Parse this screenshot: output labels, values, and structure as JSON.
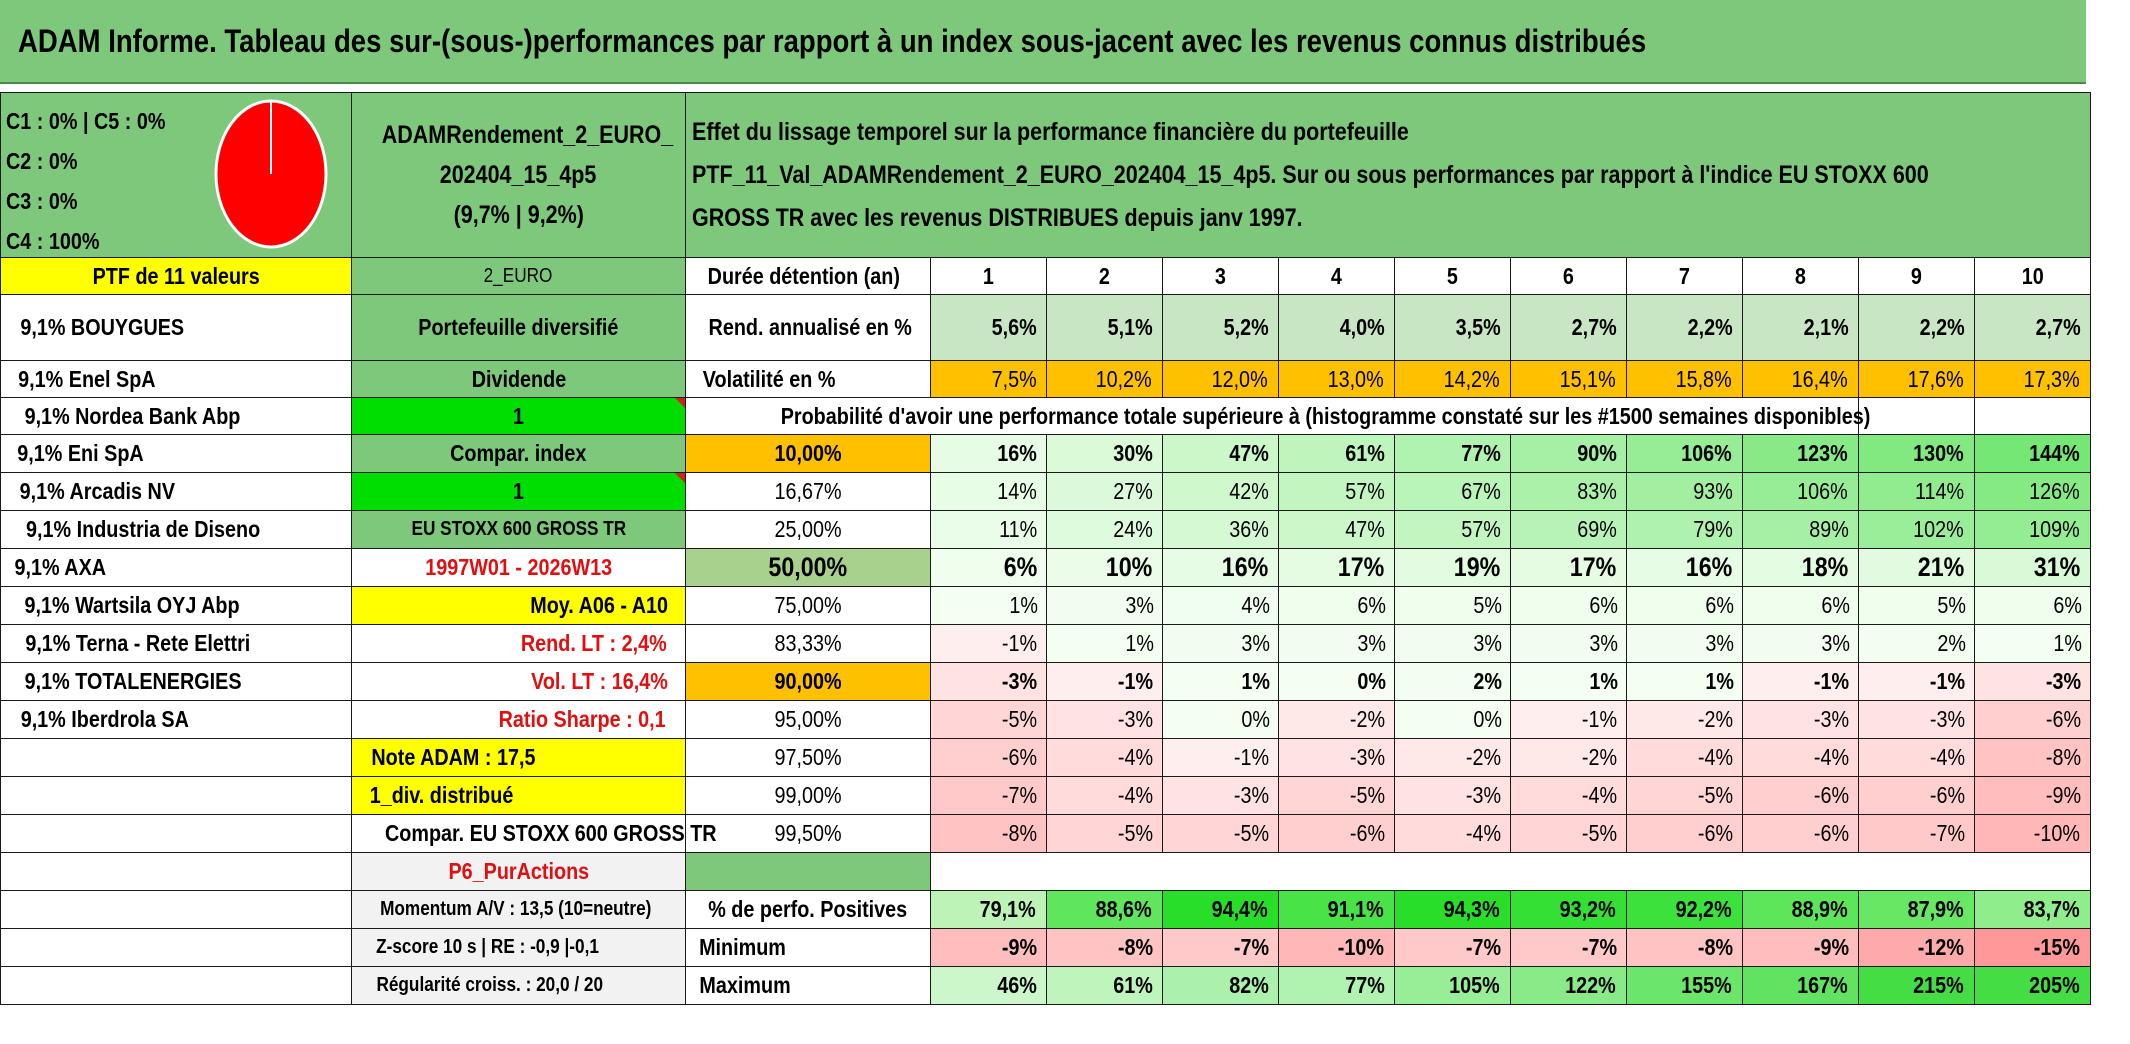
{
  "title": "ADAM Informe. Tableau des sur-(sous-)performances par rapport à un index sous-jacent avec les revenus connus distribués",
  "info_lines": [
    "C1 : 0% | C5 : 0%",
    "C2 : 0%",
    "C3 : 0%",
    "C4 : 100%"
  ],
  "pie": {
    "fill_color": "#ff0000",
    "value": "C4 : 100%"
  },
  "ptf_name": [
    "ADAMRendement_2_EURO_",
    "202404_15_4p5",
    "(9,7% | 9,2%)"
  ],
  "effect_text": [
    "Effet du lissage temporel sur la performance financière du portefeuille",
    "PTF_11_Val_ADAMRendement_2_EURO_202404_15_4p5. Sur ou sous performances par rapport à l'indice EU STOXX 600",
    "GROSS TR avec les revenus DISTRIBUES depuis janv 1997."
  ],
  "ptf_header": "PTF de 11 valeurs",
  "currency": "2_EURO",
  "duration_label": "Durée détention (an)",
  "years": [
    "1",
    "2",
    "3",
    "4",
    "5",
    "6",
    "7",
    "8",
    "9",
    "10"
  ],
  "holdings": [
    "9,1% BOUYGUES",
    "9,1% Enel SpA",
    "9,1% Nordea Bank Abp",
    "9,1% Eni SpA",
    "9,1% Arcadis NV",
    "9,1% Industria de Diseno",
    "9,1% AXA",
    "9,1% Wartsila OYJ Abp",
    "9,1% Terna - Rete Elettri",
    "9,1% TOTALENERGIES",
    "9,1% Iberdrola SA"
  ],
  "middle": {
    "diversified": "Portefeuille diversifié",
    "dividend": "Dividende",
    "one_a": "1",
    "compar_index": "Compar. index",
    "one_b": "1",
    "index_name": "EU STOXX 600 GROSS TR",
    "period": "1997W01 - 2026W13",
    "avg": "Moy. A06 - A10",
    "rend_lt": "Rend. LT : 2,4%",
    "vol_lt": "Vol. LT : 16,4%",
    "sharpe": "Ratio Sharpe : 0,1",
    "note": "Note ADAM : 17,5",
    "div": "1_div. distribué",
    "compar": "Compar. EU STOXX 600 GROSS TR",
    "p6": "P6_PurActions",
    "momentum": "Momentum A/V : 13,5 (10=neutre)",
    "zscore": "Z-score 10 s | RE : -0,9 |-0,1",
    "regularite": "Régularité croiss. : 20,0 / 20"
  },
  "rend": {
    "label": "Rend. annualisé en %",
    "values": [
      "5,6%",
      "5,1%",
      "5,2%",
      "4,0%",
      "3,5%",
      "2,7%",
      "2,2%",
      "2,1%",
      "2,2%",
      "2,7%"
    ]
  },
  "vol": {
    "label": "Volatilité en %",
    "values": [
      "7,5%",
      "10,2%",
      "12,0%",
      "13,0%",
      "14,2%",
      "15,1%",
      "15,8%",
      "16,4%",
      "17,6%",
      "17,3%"
    ]
  },
  "prob_title": "Probabilité d'avoir une performance totale supérieure à (histogramme constaté sur les #1500 semaines disponibles)",
  "prob_rows": [
    {
      "p": "10,00%",
      "values": [
        "16%",
        "30%",
        "47%",
        "61%",
        "77%",
        "90%",
        "106%",
        "123%",
        "130%",
        "144%"
      ]
    },
    {
      "p": "16,67%",
      "values": [
        "14%",
        "27%",
        "42%",
        "57%",
        "67%",
        "83%",
        "93%",
        "106%",
        "114%",
        "126%"
      ]
    },
    {
      "p": "25,00%",
      "values": [
        "11%",
        "24%",
        "36%",
        "47%",
        "57%",
        "69%",
        "79%",
        "89%",
        "102%",
        "109%"
      ]
    },
    {
      "p": "50,00%",
      "values": [
        "6%",
        "10%",
        "16%",
        "17%",
        "19%",
        "17%",
        "16%",
        "18%",
        "21%",
        "31%"
      ]
    },
    {
      "p": "75,00%",
      "values": [
        "1%",
        "3%",
        "4%",
        "6%",
        "5%",
        "6%",
        "6%",
        "6%",
        "5%",
        "6%"
      ]
    },
    {
      "p": "83,33%",
      "values": [
        "-1%",
        "1%",
        "3%",
        "3%",
        "3%",
        "3%",
        "3%",
        "3%",
        "2%",
        "1%"
      ]
    },
    {
      "p": "90,00%",
      "values": [
        "-3%",
        "-1%",
        "1%",
        "0%",
        "2%",
        "1%",
        "1%",
        "-1%",
        "-1%",
        "-3%"
      ]
    },
    {
      "p": "95,00%",
      "values": [
        "-5%",
        "-3%",
        "0%",
        "-2%",
        "0%",
        "-1%",
        "-2%",
        "-3%",
        "-3%",
        "-6%"
      ]
    },
    {
      "p": "97,50%",
      "values": [
        "-6%",
        "-4%",
        "-1%",
        "-3%",
        "-2%",
        "-2%",
        "-4%",
        "-4%",
        "-4%",
        "-8%"
      ]
    },
    {
      "p": "99,00%",
      "values": [
        "-7%",
        "-4%",
        "-3%",
        "-5%",
        "-3%",
        "-4%",
        "-5%",
        "-6%",
        "-6%",
        "-9%"
      ]
    },
    {
      "p": "99,50%",
      "values": [
        "-8%",
        "-5%",
        "-5%",
        "-6%",
        "-4%",
        "-5%",
        "-6%",
        "-6%",
        "-7%",
        "-10%"
      ]
    }
  ],
  "pos": {
    "label": "% de perfo. Positives",
    "values": [
      "79,1%",
      "88,6%",
      "94,4%",
      "91,1%",
      "94,3%",
      "93,2%",
      "92,2%",
      "88,9%",
      "87,9%",
      "83,7%"
    ]
  },
  "min": {
    "label": "Minimum",
    "values": [
      "-9%",
      "-8%",
      "-7%",
      "-10%",
      "-7%",
      "-7%",
      "-8%",
      "-9%",
      "-12%",
      "-15%"
    ]
  },
  "max": {
    "label": "Maximum",
    "values": [
      "46%",
      "61%",
      "82%",
      "77%",
      "105%",
      "122%",
      "155%",
      "167%",
      "215%",
      "205%"
    ]
  },
  "colors": {
    "green_header": "#7ec87c",
    "yellow": "#ffff00",
    "bright_green": "#00dd00",
    "orange": "#ffc000",
    "red_text": "#e01010"
  }
}
